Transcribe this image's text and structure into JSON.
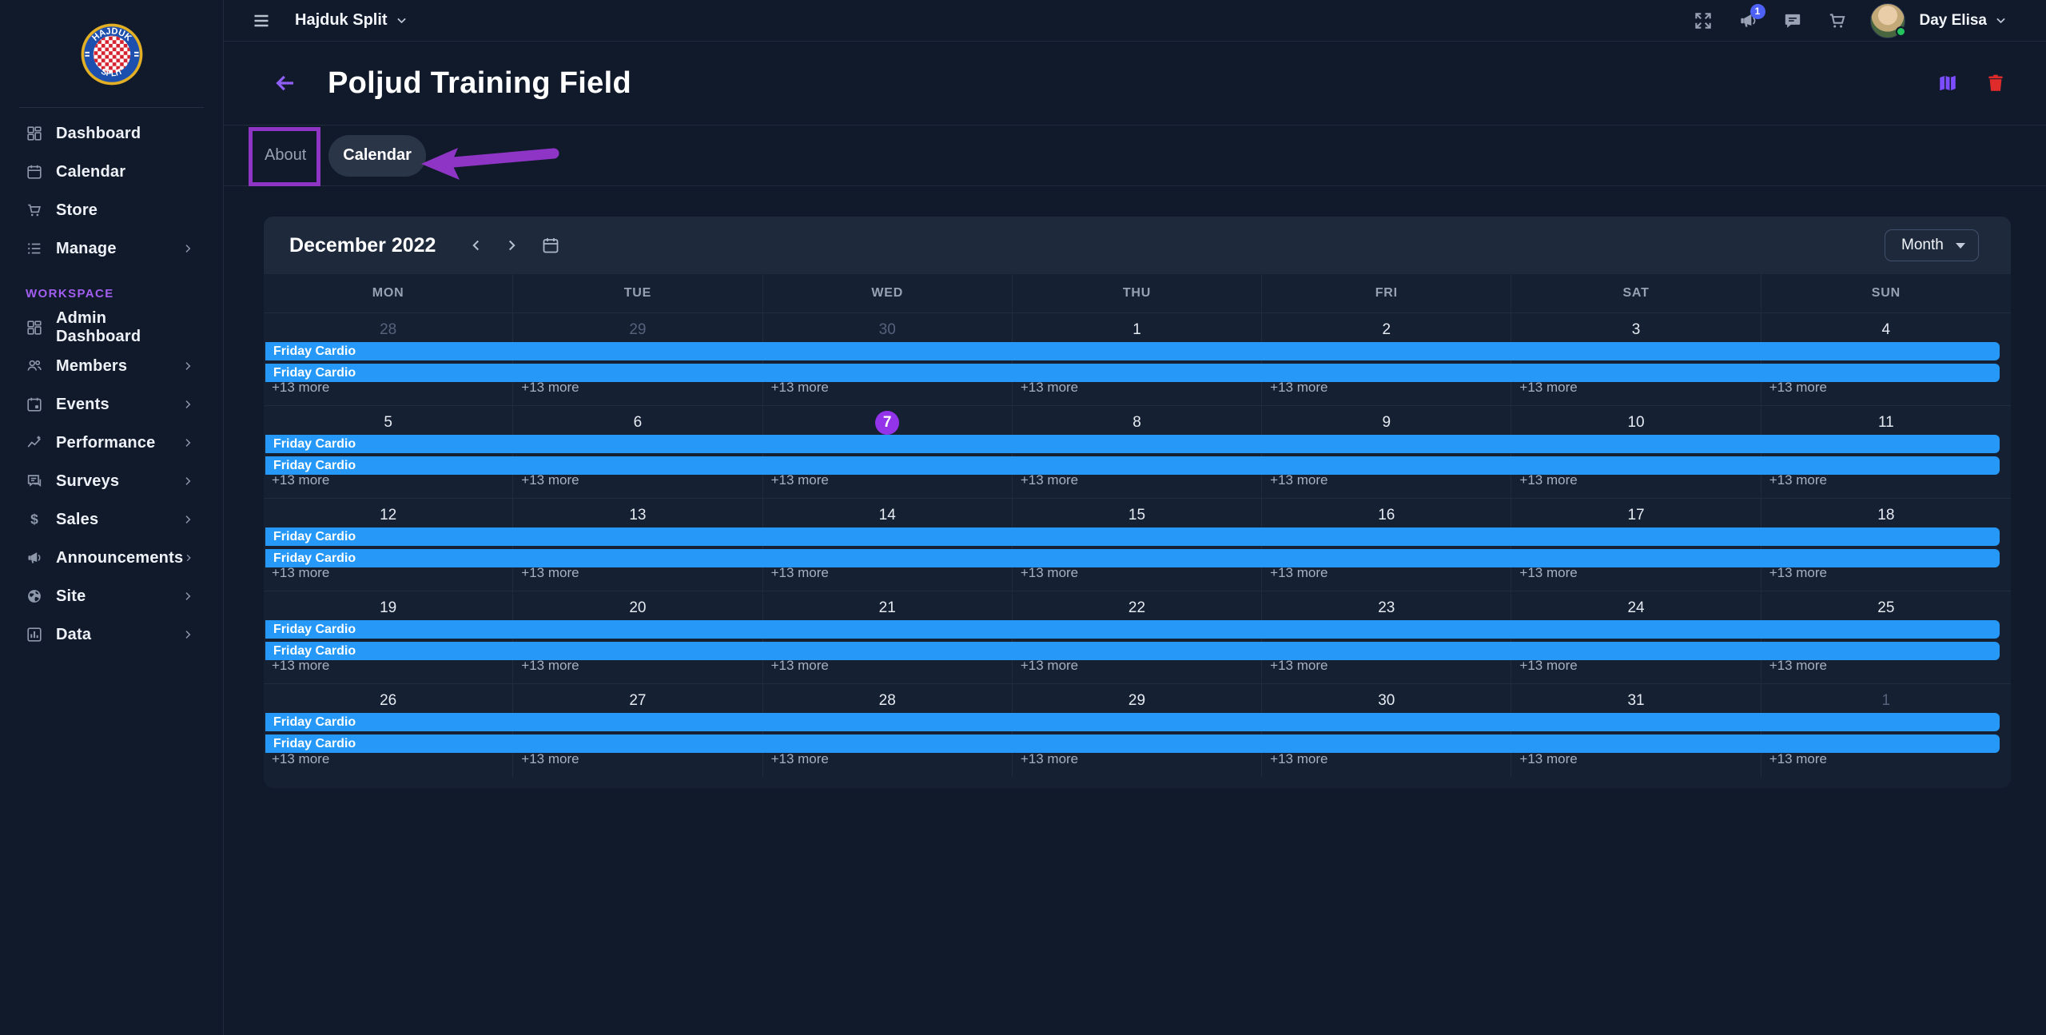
{
  "topbar": {
    "org_name": "Hajduk Split",
    "user_name": "Day Elisa",
    "notification_badge": "1",
    "icons": [
      "fullscreen-icon",
      "announcements-icon",
      "messages-icon",
      "cart-icon"
    ]
  },
  "sidebar": {
    "logo": "hajduk-split-crest",
    "workspace_label": "WORKSPACE",
    "items_top": [
      {
        "label": "Dashboard",
        "icon": "dashboard-icon",
        "has_chevron": false
      },
      {
        "label": "Calendar",
        "icon": "calendar-icon",
        "has_chevron": false
      },
      {
        "label": "Store",
        "icon": "store-icon",
        "has_chevron": false
      },
      {
        "label": "Manage",
        "icon": "manage-icon",
        "has_chevron": true
      }
    ],
    "items_workspace": [
      {
        "label": "Admin Dashboard",
        "icon": "admin-dashboard-icon",
        "has_chevron": false
      },
      {
        "label": "Members",
        "icon": "members-icon",
        "has_chevron": true
      },
      {
        "label": "Events",
        "icon": "events-icon",
        "has_chevron": true
      },
      {
        "label": "Performance",
        "icon": "performance-icon",
        "has_chevron": true
      },
      {
        "label": "Surveys",
        "icon": "surveys-icon",
        "has_chevron": true
      },
      {
        "label": "Sales",
        "icon": "sales-icon",
        "has_chevron": true
      },
      {
        "label": "Announcements",
        "icon": "announcements-icon",
        "has_chevron": true
      },
      {
        "label": "Site",
        "icon": "site-icon",
        "has_chevron": true
      },
      {
        "label": "Data",
        "icon": "data-icon",
        "has_chevron": true
      }
    ]
  },
  "page": {
    "title": "Poljud Training Field",
    "tabs": [
      {
        "label": "About",
        "active": false
      },
      {
        "label": "Calendar",
        "active": true
      }
    ],
    "actions": [
      "map-icon",
      "delete-icon"
    ]
  },
  "calendar": {
    "month_label": "December 2022",
    "view_selector": "Month",
    "day_headers": [
      "MON",
      "TUE",
      "WED",
      "THU",
      "FRI",
      "SAT",
      "SUN"
    ],
    "today_date": "7",
    "more_label": "+13 more",
    "events_per_week": [
      "Friday Cardio",
      "Friday Cardio"
    ],
    "weeks": [
      {
        "dates": [
          {
            "n": "28",
            "muted": true
          },
          {
            "n": "29",
            "muted": true
          },
          {
            "n": "30",
            "muted": true
          },
          {
            "n": "1"
          },
          {
            "n": "2"
          },
          {
            "n": "3"
          },
          {
            "n": "4"
          }
        ]
      },
      {
        "dates": [
          {
            "n": "5"
          },
          {
            "n": "6"
          },
          {
            "n": "7",
            "today": true
          },
          {
            "n": "8"
          },
          {
            "n": "9"
          },
          {
            "n": "10"
          },
          {
            "n": "11"
          }
        ]
      },
      {
        "dates": [
          {
            "n": "12"
          },
          {
            "n": "13"
          },
          {
            "n": "14"
          },
          {
            "n": "15"
          },
          {
            "n": "16"
          },
          {
            "n": "17"
          },
          {
            "n": "18"
          }
        ]
      },
      {
        "dates": [
          {
            "n": "19"
          },
          {
            "n": "20"
          },
          {
            "n": "21"
          },
          {
            "n": "22"
          },
          {
            "n": "23"
          },
          {
            "n": "24"
          },
          {
            "n": "25"
          }
        ]
      },
      {
        "dates": [
          {
            "n": "26"
          },
          {
            "n": "27"
          },
          {
            "n": "28"
          },
          {
            "n": "29"
          },
          {
            "n": "30"
          },
          {
            "n": "31"
          },
          {
            "n": "1",
            "muted": true
          }
        ]
      }
    ]
  },
  "colors": {
    "accent_purple": "#8f5ff5",
    "event_blue": "#2598f8",
    "today_purple": "#9333ea",
    "delete_red": "#e02b2b",
    "map_purple": "#7c4dff",
    "badge_blue": "#4e61f6",
    "online_green": "#23c45e",
    "workspace_purple": "#a15ef0",
    "annotation_purple": "#8e35c5"
  }
}
